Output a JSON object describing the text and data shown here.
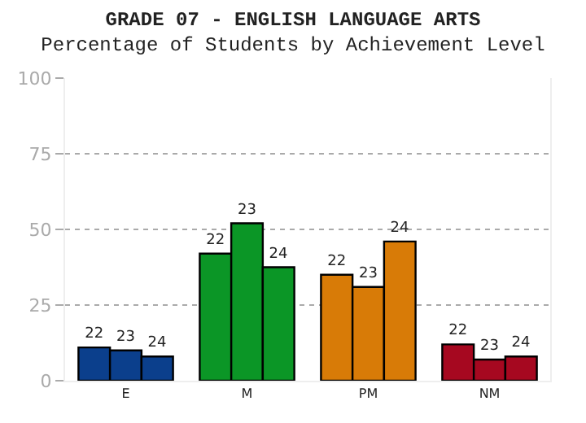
{
  "chart_data": {
    "type": "bar",
    "title": "GRADE 07 - ENGLISH LANGUAGE ARTS",
    "subtitle": "Percentage of Students by Achievement Level",
    "categories": [
      "E",
      "M",
      "PM",
      "NM"
    ],
    "series": [
      {
        "name": "22",
        "colors": [
          "#0b3f8c",
          "#0b9626",
          "#d87b07",
          "#a60820"
        ],
        "values": [
          11,
          42,
          35,
          12
        ]
      },
      {
        "name": "23",
        "colors": [
          "#0b3f8c",
          "#0b9626",
          "#d87b07",
          "#a60820"
        ],
        "values": [
          10,
          52,
          31,
          7
        ]
      },
      {
        "name": "24",
        "colors": [
          "#0b3f8c",
          "#0b9626",
          "#d87b07",
          "#a60820"
        ],
        "values": [
          8,
          37.5,
          46,
          8
        ]
      }
    ],
    "ylim": [
      0,
      100
    ],
    "yticks": [
      0,
      25,
      50,
      75,
      100
    ],
    "grid": "y",
    "legend": false
  }
}
